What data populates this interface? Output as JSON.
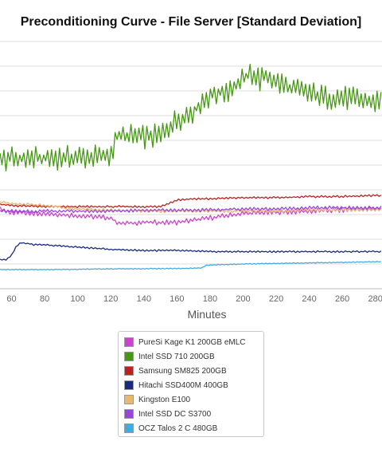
{
  "chart_data": {
    "type": "line",
    "title": "Preconditioning Curve - File Server [Standard Deviation]",
    "xlabel": "Minutes",
    "ylabel": "",
    "xlim": [
      53,
      284
    ],
    "ylim": [
      0,
      11
    ],
    "x_ticks": [
      60,
      80,
      100,
      120,
      140,
      160,
      180,
      200,
      220,
      240,
      260,
      280
    ],
    "grid": true,
    "legend_position": "bottom",
    "series": [
      {
        "name": "PureSi Kage K1 200GB eMLC",
        "color": "#cc44cc",
        "x": [
          53,
          60,
          80,
          100,
          120,
          125,
          140,
          160,
          180,
          200,
          220,
          240,
          260,
          284
        ],
        "y": [
          3.55,
          3.4,
          3.35,
          3.25,
          3.15,
          2.9,
          2.95,
          2.95,
          3.15,
          3.35,
          3.4,
          3.45,
          3.5,
          3.55
        ]
      },
      {
        "name": "Intel SSD 710 200GB",
        "color": "#449911",
        "x": [
          53,
          60,
          80,
          100,
          120,
          123,
          130,
          140,
          150,
          155,
          160,
          165,
          170,
          175,
          180,
          190,
          200,
          205,
          210,
          215,
          220,
          230,
          240,
          250,
          260,
          270,
          284
        ],
        "y": [
          5.7,
          5.8,
          5.8,
          5.85,
          5.9,
          6.8,
          6.8,
          6.75,
          6.8,
          7.2,
          7.5,
          7.7,
          7.9,
          8.3,
          8.6,
          8.8,
          9.3,
          9.6,
          9.3,
          9.5,
          9.2,
          8.9,
          8.7,
          8.5,
          8.5,
          8.4,
          8.3
        ]
      },
      {
        "name": "Samsung SM825 200GB",
        "color": "#bb2222",
        "x": [
          53,
          60,
          80,
          100,
          120,
          140,
          150,
          160,
          170,
          180,
          200,
          220,
          240,
          260,
          284
        ],
        "y": [
          3.75,
          3.7,
          3.65,
          3.65,
          3.65,
          3.65,
          3.65,
          3.95,
          4.0,
          4.0,
          4.05,
          4.05,
          4.1,
          4.1,
          4.15
        ]
      },
      {
        "name": "Hitachi SSD400M 400GB",
        "color": "#1a2a80",
        "x": [
          53,
          57,
          60,
          63,
          66,
          70,
          75,
          80,
          90,
          100,
          110,
          120,
          140,
          160,
          180,
          200,
          220,
          240,
          260,
          284
        ],
        "y": [
          1.3,
          1.3,
          1.5,
          1.9,
          2.05,
          2.0,
          1.95,
          1.95,
          1.9,
          1.85,
          1.8,
          1.75,
          1.7,
          1.7,
          1.65,
          1.65,
          1.65,
          1.65,
          1.65,
          1.65
        ]
      },
      {
        "name": "Kingston E100",
        "color": "#e8b870",
        "x": [
          53,
          60,
          80,
          100,
          120,
          140,
          160,
          180,
          200,
          220,
          240,
          260,
          284
        ],
        "y": [
          3.85,
          3.8,
          3.7,
          3.55,
          3.5,
          3.45,
          3.45,
          3.45,
          3.45,
          3.45,
          3.5,
          3.5,
          3.5
        ]
      },
      {
        "name": "Intel SSD DC S3700",
        "color": "#9944dd",
        "x": [
          53,
          60,
          80,
          100,
          120,
          140,
          160,
          180,
          200,
          220,
          240,
          260,
          284
        ],
        "y": [
          3.45,
          3.45,
          3.45,
          3.45,
          3.45,
          3.5,
          3.5,
          3.5,
          3.55,
          3.55,
          3.6,
          3.6,
          3.6
        ]
      },
      {
        "name": "OCZ Talos 2 C 480GB",
        "color": "#44aadd",
        "x": [
          53,
          80,
          120,
          160,
          175,
          178,
          200,
          240,
          284
        ],
        "y": [
          0.85,
          0.85,
          0.88,
          0.9,
          0.92,
          1.05,
          1.1,
          1.15,
          1.2
        ]
      }
    ]
  }
}
